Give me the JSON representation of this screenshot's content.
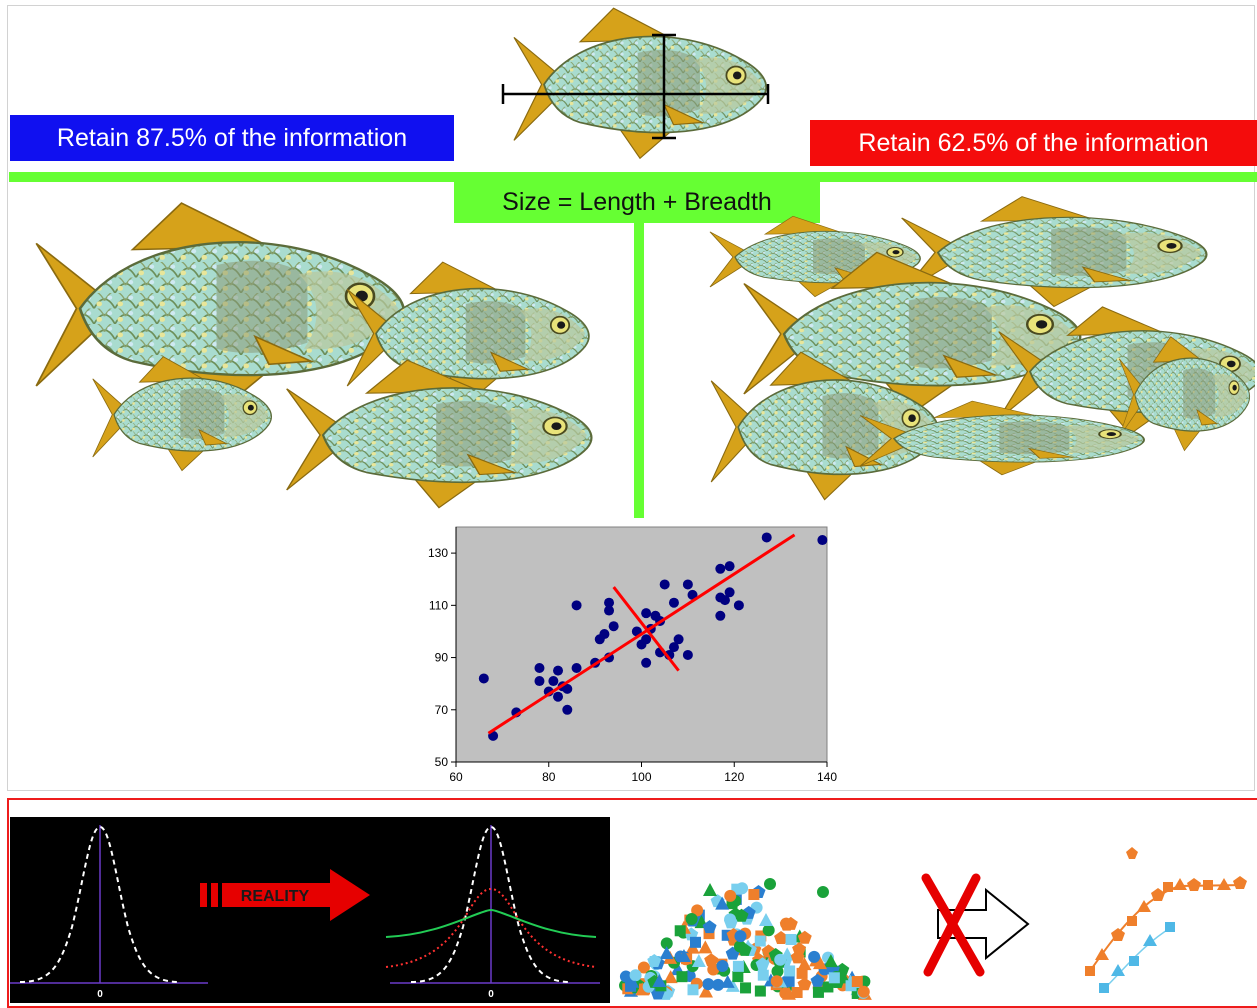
{
  "labels": {
    "blue_banner": "Retain 87.5% of the information",
    "red_banner": "Retain 62.5% of the information",
    "size_formula": "Size = Length + Breadth",
    "reality": "REALITY",
    "zero_left": "0",
    "zero_right": "0"
  },
  "colors": {
    "blue_banner": "#1010f0",
    "red_banner": "#f40c0c",
    "green_bar": "#66ff33",
    "plot_background": "#c0c0c0",
    "points": "#000080",
    "lines": "#ff0000",
    "fish_body": "#9fd4c8",
    "fish_fin": "#d6a21a"
  },
  "icons": [
    "fish-icon",
    "measurement-cross-icon",
    "reality-arrow-icon",
    "crossed-out-arrow-icon"
  ],
  "chart_data": {
    "type": "scatter",
    "title": "",
    "xlabel": "",
    "ylabel": "",
    "xlim": [
      60,
      140
    ],
    "ylim": [
      50,
      140
    ],
    "xticks": [
      60,
      80,
      100,
      120,
      140
    ],
    "yticks": [
      50,
      70,
      90,
      110,
      130
    ],
    "grid": false,
    "points": [
      [
        66,
        82
      ],
      [
        68,
        60
      ],
      [
        73,
        69
      ],
      [
        78,
        86
      ],
      [
        78,
        81
      ],
      [
        80,
        77
      ],
      [
        81,
        81
      ],
      [
        82,
        85
      ],
      [
        82,
        75
      ],
      [
        83,
        79
      ],
      [
        84,
        78
      ],
      [
        84,
        70
      ],
      [
        86,
        110
      ],
      [
        86,
        86
      ],
      [
        90,
        88
      ],
      [
        91,
        97
      ],
      [
        92,
        99
      ],
      [
        93,
        111
      ],
      [
        93,
        108
      ],
      [
        93,
        90
      ],
      [
        94,
        102
      ],
      [
        99,
        100
      ],
      [
        100,
        95
      ],
      [
        101,
        97
      ],
      [
        101,
        88
      ],
      [
        101,
        107
      ],
      [
        102,
        101
      ],
      [
        103,
        106
      ],
      [
        104,
        104
      ],
      [
        104,
        92
      ],
      [
        105,
        118
      ],
      [
        106,
        91
      ],
      [
        107,
        94
      ],
      [
        107,
        111
      ],
      [
        108,
        97
      ],
      [
        110,
        118
      ],
      [
        110,
        91
      ],
      [
        111,
        114
      ],
      [
        117,
        124
      ],
      [
        117,
        113
      ],
      [
        117,
        106
      ],
      [
        118,
        112
      ],
      [
        119,
        115
      ],
      [
        119,
        125
      ],
      [
        121,
        110
      ],
      [
        127,
        136
      ],
      [
        139,
        135
      ]
    ],
    "lines": [
      {
        "x": [
          67,
          133
        ],
        "y": [
          61,
          137
        ]
      },
      {
        "x": [
          94,
          108
        ],
        "y": [
          117,
          85
        ]
      }
    ]
  }
}
